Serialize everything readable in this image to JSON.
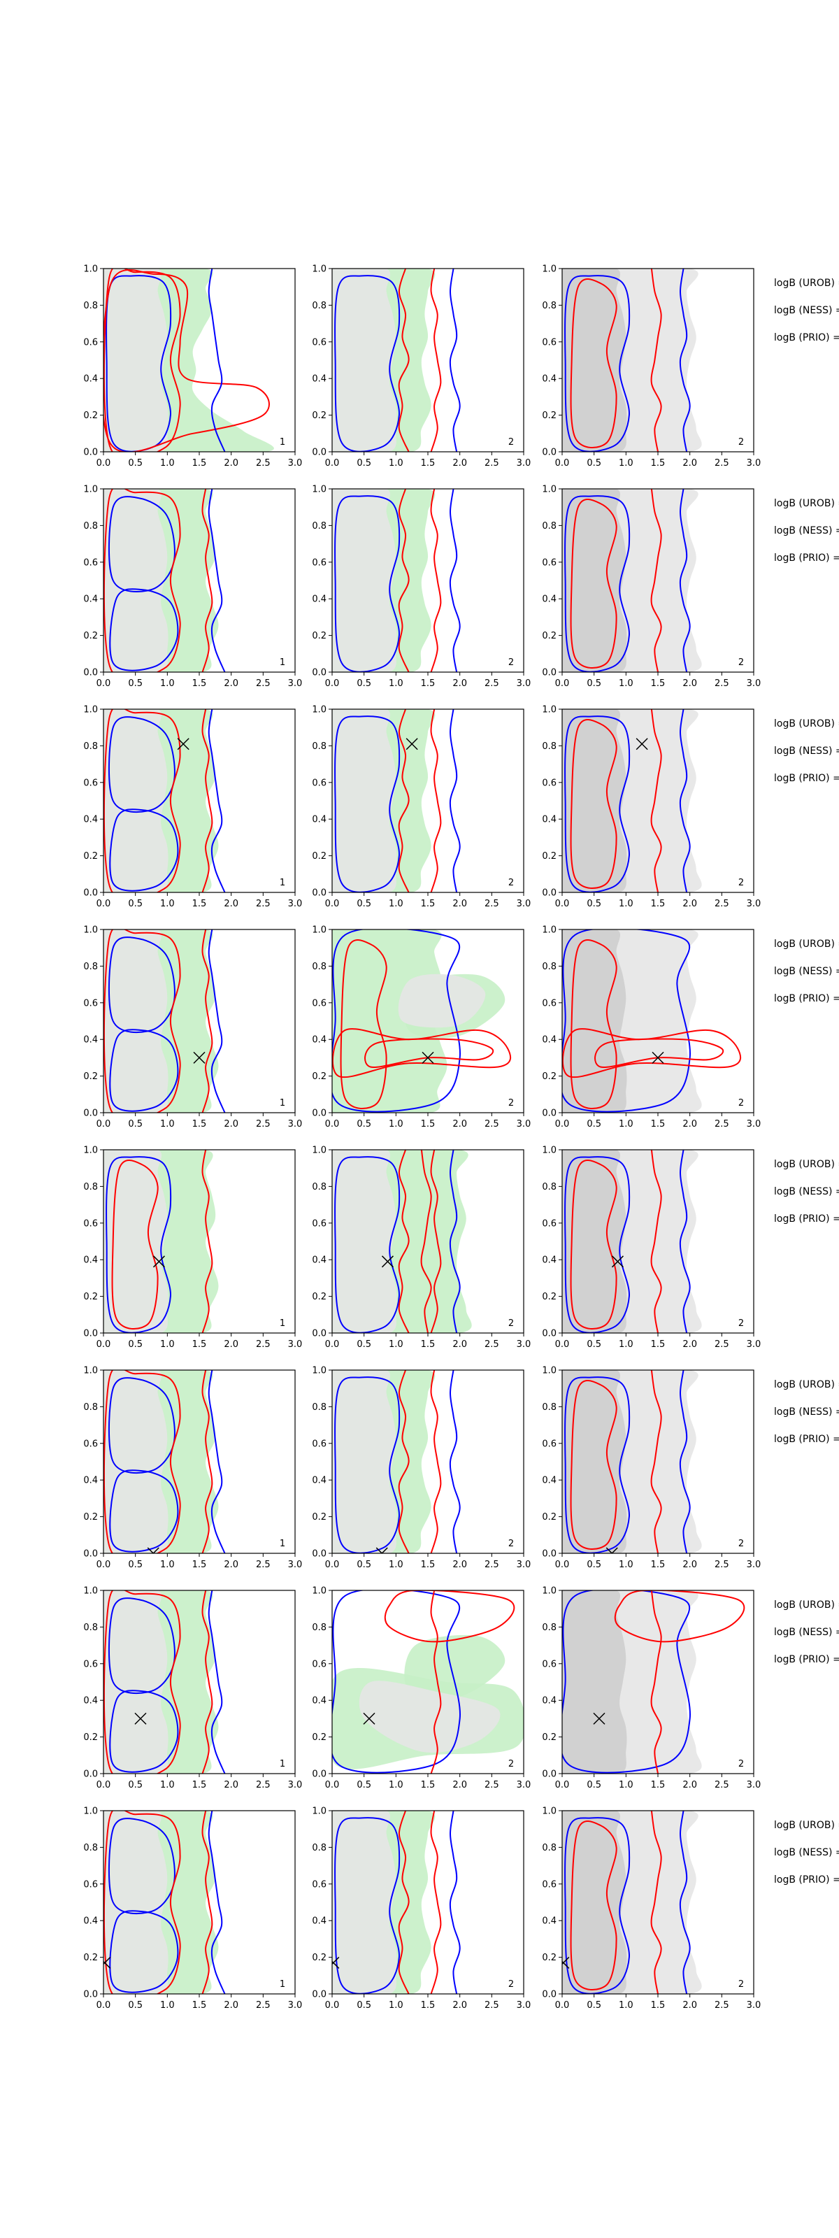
{
  "colors": {
    "blue": "#0000ff",
    "red": "#ff0000",
    "green_fill": "#c6efc6",
    "grey_fill": "#e6e6e6",
    "dark_grey_fill": "#bdbdbd"
  },
  "side_labels": [
    "logB (UROB) =",
    "logB (NESS) =",
    "logB (PRIO) ="
  ],
  "chart_data": {
    "type": "contour-grid",
    "rows": 8,
    "columns": 3,
    "xlim": [
      0.0,
      3.0
    ],
    "ylim": [
      0.0,
      1.0
    ],
    "x_ticks": [
      "0.0",
      "0.5",
      "1.0",
      "1.5",
      "2.0",
      "2.5",
      "3.0"
    ],
    "y_ticks": [
      "0.0",
      "0.2",
      "0.4",
      "0.6",
      "0.8",
      "1.0"
    ],
    "column_corner_labels": [
      "1",
      "2",
      "2"
    ],
    "column_fill": [
      "green",
      "green",
      "grey"
    ],
    "markers": [
      {
        "row": 1,
        "x": null,
        "y": null
      },
      {
        "row": 2,
        "x": null,
        "y": null
      },
      {
        "row": 3,
        "x": 1.25,
        "y": 0.81
      },
      {
        "row": 4,
        "x": 1.5,
        "y": 0.3
      },
      {
        "row": 5,
        "x": 0.87,
        "y": 0.39
      },
      {
        "row": 6,
        "x": 0.78,
        "y": 0.0
      },
      {
        "row": 7,
        "x": 0.58,
        "y": 0.3
      },
      {
        "row": 8,
        "x": 0.02,
        "y": 0.17
      }
    ],
    "row_variants": [
      "a",
      "b",
      "b",
      "c",
      "d",
      "b",
      "e",
      "b"
    ]
  }
}
